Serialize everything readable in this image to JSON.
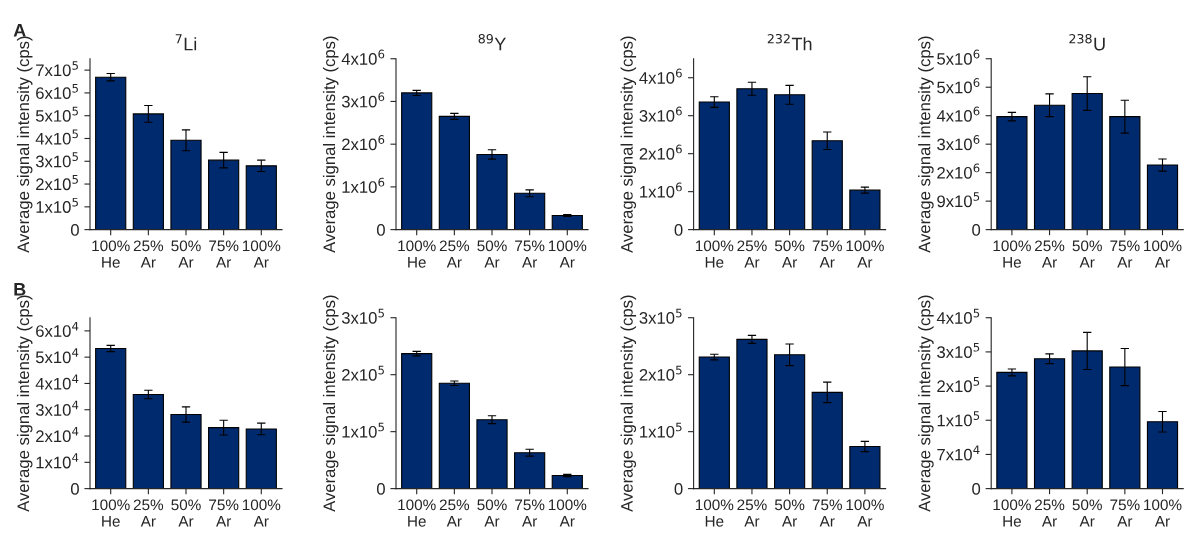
{
  "chart_data": [
    {
      "type": "bar",
      "title": "$^{7}$Li",
      "ylabel": "Average signal intensity (cps)",
      "annotations": [
        "A"
      ],
      "color": "#002a6e",
      "categories": [
        "100%\nHe",
        "25%\nAr",
        "50%\nAr",
        "75%\nAr",
        "100%\nAr"
      ],
      "values": [
        669000,
        508000,
        392000,
        305000,
        280000
      ],
      "errors": [
        16000,
        37000,
        46000,
        34000,
        25000
      ],
      "ylim": [
        0,
        750000
      ],
      "yticks": [
        0,
        {
          "value": 100000,
          "label": "1x10$^{5}$"
        },
        {
          "value": 200000,
          "label": "2x10$^{5}$"
        },
        {
          "value": 300000,
          "label": "3x10$^{5}$"
        },
        {
          "value": 400000,
          "label": "4x10$^{5}$"
        },
        {
          "value": 500000,
          "label": "5x10$^{5}$"
        },
        {
          "value": 600000,
          "label": "6x10$^{5}$"
        },
        {
          "value": 700000,
          "label": "7x10$^{5}$"
        }
      ]
    },
    {
      "type": "bar",
      "title": "$^{89}$Y",
      "ylabel": "Average signal intensity (cps)",
      "color": "#002a6e",
      "categories": [
        "100%\nHe",
        "25%\nAr",
        "50%\nAr",
        "75%\nAr",
        "100%\nAr"
      ],
      "values": [
        3200000,
        2650000,
        1760000,
        850000,
        330000
      ],
      "errors": [
        60000,
        70000,
        110000,
        80000,
        20000
      ],
      "ylim": [
        0,
        4000000
      ],
      "yticks": [
        0,
        {
          "value": 1000000,
          "label": "1x10$^{6}$"
        },
        {
          "value": 2000000,
          "label": "2x10$^{6}$"
        },
        {
          "value": 3000000,
          "label": "3x10$^{6}$"
        },
        {
          "value": 4000000,
          "label": "4x10$^{6}$"
        }
      ]
    },
    {
      "type": "bar",
      "title": "$^{232}$Th",
      "ylabel": "Average signal intensity (cps)",
      "color": "#002a6e",
      "categories": [
        "100%\nHe",
        "25%\nAr",
        "50%\nAr",
        "75%\nAr",
        "100%\nAr"
      ],
      "values": [
        3360000,
        3710000,
        3550000,
        2340000,
        1040000
      ],
      "errors": [
        140000,
        170000,
        250000,
        230000,
        80000
      ],
      "ylim": [
        0,
        4500000
      ],
      "yticks": [
        0,
        {
          "value": 1000000,
          "label": "1x10$^{6}$"
        },
        {
          "value": 2000000,
          "label": "2x10$^{6}$"
        },
        {
          "value": 3000000,
          "label": "3x10$^{6}$"
        },
        {
          "value": 4000000,
          "label": "4x10$^{6}$"
        }
      ]
    },
    {
      "type": "bar",
      "title": "$^{238}$U",
      "ylabel": "Average signal intensity (cps)",
      "color": "#002a6e",
      "categories": [
        "100%\nHe",
        "25%\nAr",
        "50%\nAr",
        "75%\nAr",
        "100%\nAr"
      ],
      "values": [
        3570000,
        3930000,
        4300000,
        3570000,
        2040000
      ],
      "errors": [
        135000,
        360000,
        530000,
        520000,
        190000
      ],
      "ylim": [
        0,
        5400000
      ],
      "yticks": [
        0,
        {
          "value": 900000,
          "label": "9x10$^{5}$"
        },
        {
          "value": 1800000,
          "label": "2x10$^{6}$"
        },
        {
          "value": 2700000,
          "label": "3x10$^{6}$"
        },
        {
          "value": 3600000,
          "label": "4x10$^{6}$"
        },
        {
          "value": 4500000,
          "label": "5x10$^{6}$"
        },
        {
          "value": 5400000,
          "label": "5x10$^{6}$"
        }
      ]
    },
    {
      "type": "bar",
      "ylabel": "Average signal intensity (cps)",
      "annotations": [
        "B"
      ],
      "color": "#002a6e",
      "categories": [
        "100%\nHe",
        "25%\nAr",
        "50%\nAr",
        "75%\nAr",
        "100%\nAr"
      ],
      "values": [
        53300,
        35800,
        28200,
        23200,
        22700
      ],
      "errors": [
        1200,
        1600,
        2900,
        2800,
        2200
      ],
      "ylim": [
        0,
        65000
      ],
      "yticks": [
        0,
        {
          "value": 10000,
          "label": "1x10$^{4}$"
        },
        {
          "value": 20000,
          "label": "2x10$^{4}$"
        },
        {
          "value": 30000,
          "label": "3x10$^{4}$"
        },
        {
          "value": 40000,
          "label": "4x10$^{4}$"
        },
        {
          "value": 50000,
          "label": "5x10$^{4}$"
        },
        {
          "value": 60000,
          "label": "6x10$^{4}$"
        }
      ]
    },
    {
      "type": "bar",
      "ylabel": "Average signal intensity (cps)",
      "color": "#002a6e",
      "categories": [
        "100%\nHe",
        "25%\nAr",
        "50%\nAr",
        "75%\nAr",
        "100%\nAr"
      ],
      "values": [
        237000,
        185000,
        121000,
        63000,
        23000
      ],
      "errors": [
        4000,
        4000,
        7000,
        6000,
        2000
      ],
      "ylim": [
        0,
        300000
      ],
      "yticks": [
        0,
        {
          "value": 100000,
          "label": "1x10$^{5}$"
        },
        {
          "value": 200000,
          "label": "2x10$^{5}$"
        },
        {
          "value": 300000,
          "label": "3x10$^{5}$"
        }
      ]
    },
    {
      "type": "bar",
      "ylabel": "Average signal intensity (cps)",
      "color": "#002a6e",
      "categories": [
        "100%\nHe",
        "25%\nAr",
        "50%\nAr",
        "75%\nAr",
        "100%\nAr"
      ],
      "values": [
        231000,
        262000,
        235000,
        169000,
        74000
      ],
      "errors": [
        5000,
        7000,
        19000,
        18000,
        9000
      ],
      "ylim": [
        0,
        300000
      ],
      "yticks": [
        0,
        {
          "value": 100000,
          "label": "1x10$^{5}$"
        },
        {
          "value": 200000,
          "label": "2x10$^{5}$"
        },
        {
          "value": 300000,
          "label": "3x10$^{5}$"
        }
      ]
    },
    {
      "type": "bar",
      "ylabel": "Average signal intensity (cps)",
      "color": "#002a6e",
      "categories": [
        "100%\nHe",
        "25%\nAr",
        "50%\nAr",
        "75%\nAr",
        "100%\nAr"
      ],
      "values": [
        238000,
        266000,
        282000,
        249000,
        137000
      ],
      "errors": [
        7000,
        10000,
        38000,
        38000,
        21000
      ],
      "ylim": [
        0,
        350000
      ],
      "yticks": [
        0,
        {
          "value": 70000,
          "label": "7x10$^{4}$"
        },
        {
          "value": 140000,
          "label": "1x10$^{5}$"
        },
        {
          "value": 210000,
          "label": "2x10$^{5}$"
        },
        {
          "value": 280000,
          "label": "3x10$^{5}$"
        },
        {
          "value": 350000,
          "label": "4x10$^{5}$"
        }
      ]
    }
  ]
}
